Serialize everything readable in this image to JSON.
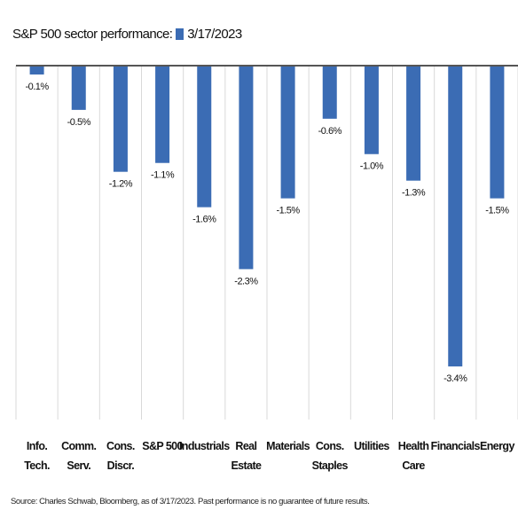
{
  "chart_data": {
    "type": "bar",
    "title": "S&P 500 sector performance:",
    "categories": [
      "Info.\nTech.",
      "Comm.\nServ.",
      "Cons.\nDiscr.",
      "S&P 500",
      "Industrials",
      "Real\nEstate",
      "Materials",
      "Cons.\nStaples",
      "Utilities",
      "Health\nCare",
      "Financials",
      "Energy"
    ],
    "series": [
      {
        "name": "3/17/2023",
        "color": "#3b6cb4",
        "values": [
          -0.1,
          -0.5,
          -1.2,
          -1.1,
          -1.6,
          -2.3,
          -1.5,
          -0.6,
          -1.0,
          -1.3,
          -3.4,
          -1.5
        ],
        "value_labels": [
          "-0.1%",
          "-0.5%",
          "-1.2%",
          "-1.1%",
          "-1.6%",
          "-2.3%",
          "-1.5%",
          "-0.6%",
          "-1.0%",
          "-1.3%",
          "-3.4%",
          "-1.5%"
        ]
      }
    ],
    "ylim": [
      -4,
      0
    ],
    "footnote": "Source: Charles Schwab, Bloomberg, as of 3/17/2023. Past performance is no guarantee of future results."
  }
}
